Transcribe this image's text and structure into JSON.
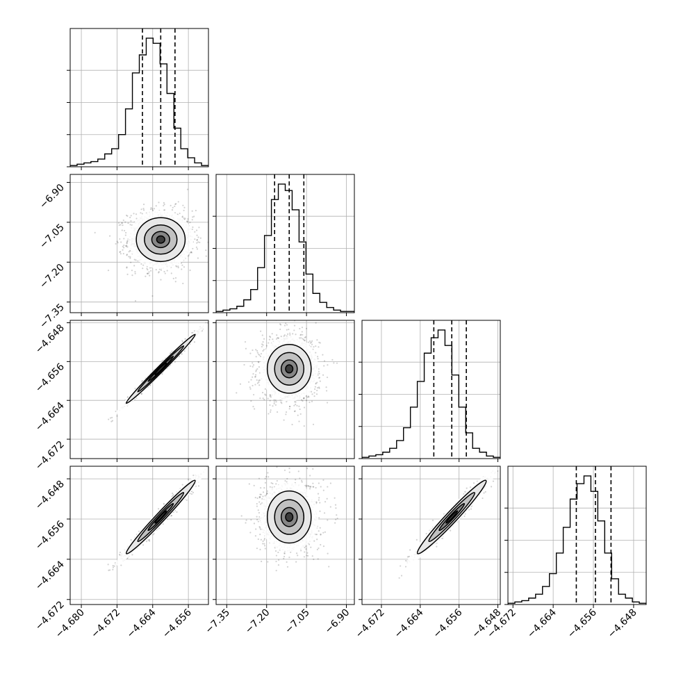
{
  "chart_data": {
    "type": "corner",
    "title": "",
    "grid": true,
    "parameters": [
      {
        "index": 0,
        "range": [
          -4.6825,
          -4.6515
        ],
        "ticks": [
          -4.68,
          -4.672,
          -4.664,
          -4.656
        ],
        "tick_labels": [
          "−4.680",
          "−4.672",
          "−4.664",
          "−4.656"
        ],
        "quantiles": [
          -4.6663,
          -4.6622,
          -4.659
        ]
      },
      {
        "index": 1,
        "range": [
          -7.39,
          -6.87
        ],
        "ticks": [
          -7.35,
          -7.2,
          -7.05,
          -6.9
        ],
        "tick_labels": [
          "−7.35",
          "−7.20",
          "−7.05",
          "−6.90"
        ],
        "quantiles": [
          -7.17,
          -7.115,
          -7.06
        ]
      },
      {
        "index": 2,
        "range": [
          -4.676,
          -4.6475
        ],
        "ticks": [
          -4.672,
          -4.664,
          -4.656,
          -4.648
        ],
        "tick_labels": [
          "−4.672",
          "−4.664",
          "−4.656",
          "−4.648"
        ],
        "quantiles": [
          -4.6612,
          -4.6575,
          -4.6545
        ]
      },
      {
        "index": 3,
        "range": [
          -4.673,
          -4.6455
        ],
        "ticks": [
          -4.672,
          -4.664,
          -4.656,
          -4.648
        ],
        "tick_labels": [
          "−4.672",
          "−4.664",
          "−4.656",
          "−4.648"
        ],
        "quantiles": [
          -4.6594,
          -4.6556,
          -4.6525
        ]
      }
    ],
    "histograms": [
      [
        1,
        2,
        3,
        4,
        6,
        10,
        14,
        25,
        45,
        73,
        87,
        100,
        96,
        80,
        57,
        30,
        14,
        7,
        3,
        1
      ],
      [
        1,
        2,
        3,
        5,
        10,
        18,
        35,
        60,
        88,
        100,
        95,
        80,
        55,
        30,
        15,
        8,
        4,
        2,
        1,
        1
      ],
      [
        1,
        2,
        3,
        5,
        8,
        14,
        24,
        40,
        60,
        82,
        94,
        100,
        88,
        65,
        40,
        20,
        8,
        5,
        2,
        1
      ],
      [
        1,
        2,
        3,
        5,
        8,
        14,
        24,
        40,
        60,
        82,
        94,
        100,
        88,
        65,
        40,
        20,
        8,
        5,
        2,
        1
      ]
    ],
    "correlations": {
      "1-0": 0.0,
      "2-0": 0.99,
      "2-1": 0.0,
      "3-0": 0.98,
      "3-1": 0.0,
      "3-2": 0.97
    }
  }
}
